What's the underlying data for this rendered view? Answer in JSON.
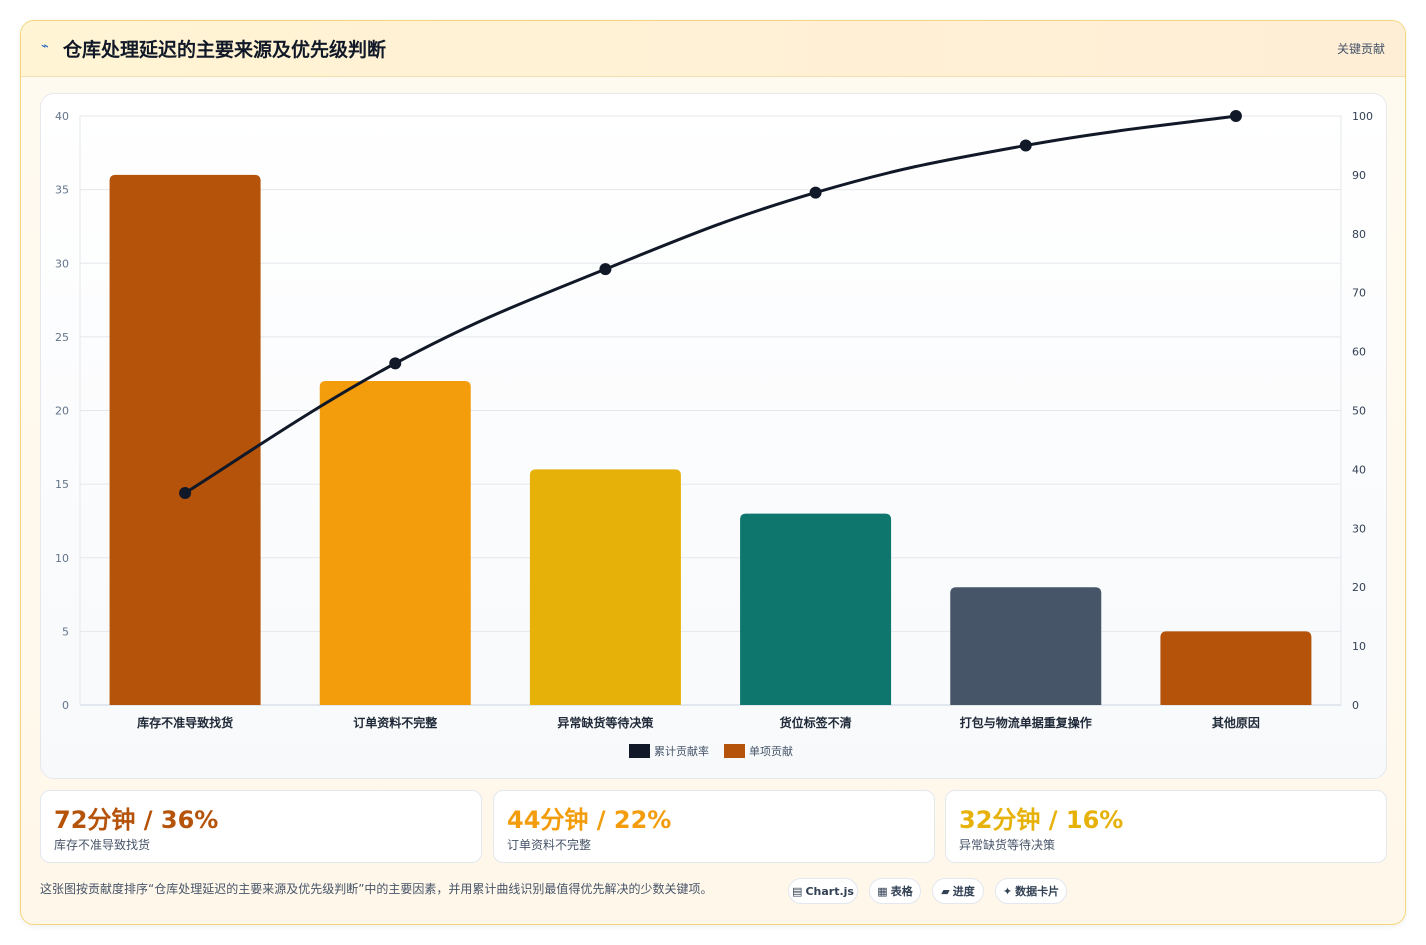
{
  "header": {
    "title": "仓库处理延迟的主要来源及优先级判断",
    "title_icon": "lightning-icon",
    "right_label": "关键贡献"
  },
  "chart_data": {
    "type": "bar",
    "categories": [
      "库存不准导致找货",
      "订单资料不完整",
      "异常缺货等待决策",
      "货位标签不清",
      "打包与物流单据重复操作",
      "其他原因"
    ],
    "series": [
      {
        "name": "单项贡献",
        "type": "bar",
        "axis": "left",
        "values": [
          36,
          22,
          16,
          13,
          8,
          5
        ],
        "colors": [
          "#b45309",
          "#f39c0c",
          "#e6b20a",
          "#0f766e",
          "#475569",
          "#b45309"
        ]
      },
      {
        "name": "累计贡献率",
        "type": "line",
        "axis": "right",
        "values": [
          36,
          58,
          74,
          87,
          95,
          100
        ],
        "color": "#111827"
      }
    ],
    "ylim": [
      0,
      40
    ],
    "yticks": [
      0,
      5,
      10,
      15,
      20,
      25,
      30,
      35,
      40
    ],
    "y2lim": [
      0,
      100
    ],
    "y2ticks": [
      0,
      10,
      20,
      30,
      40,
      50,
      60,
      70,
      80,
      90,
      100
    ],
    "grid": true,
    "legend_position": "bottom"
  },
  "stats": [
    {
      "value": "72分钟 / 36%",
      "label": "库存不准导致找货",
      "color": "#b45309"
    },
    {
      "value": "44分钟 / 22%",
      "label": "订单资料不完整",
      "color": "#f39c0c"
    },
    {
      "value": "32分钟 / 16%",
      "label": "异常缺货等待决策",
      "color": "#e6b20a"
    }
  ],
  "footnote": "这张图按贡献度排序“仓库处理延迟的主要来源及优先级判断”中的主要因素，并用累计曲线识别最值得优先解决的少数关键项。",
  "chips": [
    {
      "icon": "chart-icon",
      "glyph": "▤",
      "label": "Chart.js"
    },
    {
      "icon": "table-icon",
      "glyph": "▦",
      "label": "表格"
    },
    {
      "icon": "progress-icon",
      "glyph": "▰",
      "label": "进度"
    },
    {
      "icon": "sparkle-icon",
      "glyph": "✦",
      "label": "数据卡片"
    }
  ]
}
